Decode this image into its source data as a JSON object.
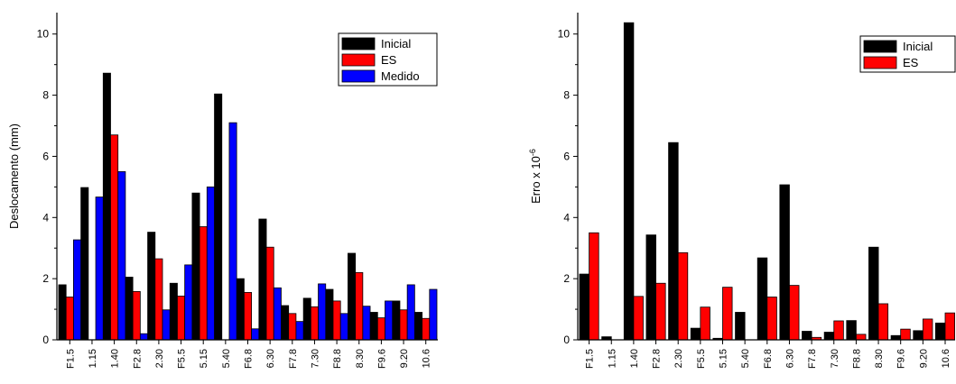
{
  "chart_data": [
    {
      "type": "bar",
      "ylabel": "Deslocamento (mm)",
      "ylim": [
        0,
        10.7
      ],
      "yticks": [
        0,
        2,
        4,
        6,
        8,
        10
      ],
      "legend_position": "top-right",
      "categories": [
        "F1.5",
        "F1.15",
        "F1.40",
        "F2.8",
        "F2.30",
        "F5.5",
        "F5.15",
        "F5.40",
        "F6.8",
        "F6.30",
        "F7.8",
        "F7.30",
        "F8.8",
        "F8.30",
        "F9.6",
        "F9.20",
        "F10.6"
      ],
      "tick_labels": [
        "F1.5",
        "1.15",
        "1.40",
        "F2.8",
        "2.30",
        "F5.5",
        "5.15",
        "5.40",
        "F6.8",
        "6.30",
        "F7.8",
        "7.30",
        "F8.8",
        "8.30",
        "F9.6",
        "9.20",
        "10.6"
      ],
      "series": [
        {
          "name": "Inicial",
          "color": "#000000",
          "values": [
            1.8,
            4.98,
            8.72,
            2.05,
            3.52,
            1.85,
            4.8,
            8.04,
            2.0,
            3.95,
            1.12,
            1.36,
            1.65,
            2.83,
            0.9,
            1.27,
            0.9
          ]
        },
        {
          "name": "ES",
          "color": "#ff0000",
          "values": [
            1.4,
            0.0,
            6.7,
            1.58,
            2.65,
            1.43,
            3.7,
            0.0,
            1.55,
            3.03,
            0.86,
            1.08,
            1.27,
            2.2,
            0.72,
            0.98,
            0.7
          ]
        },
        {
          "name": "Medido",
          "color": "#0000ff",
          "values": [
            3.27,
            4.67,
            5.5,
            0.2,
            0.98,
            2.45,
            5.0,
            7.1,
            0.36,
            1.7,
            0.6,
            1.83,
            0.86,
            1.1,
            1.27,
            1.8,
            1.65
          ]
        }
      ]
    },
    {
      "type": "bar",
      "ylabel": "Erro x 10",
      "ylabel_exponent": "-6",
      "ylim": [
        0,
        10.7
      ],
      "yticks": [
        0,
        2,
        4,
        6,
        8,
        10
      ],
      "legend_position": "top-right",
      "categories": [
        "F1.5",
        "F1.15",
        "F1.40",
        "F2.8",
        "F2.30",
        "F5.5",
        "F5.15",
        "F5.40",
        "F6.8",
        "F6.30",
        "F7.8",
        "F7.30",
        "F8.8",
        "F8.30",
        "F9.6",
        "F9.20",
        "F10.6"
      ],
      "tick_labels": [
        "F1.5",
        "1.15",
        "1.40",
        "F2.8",
        "2.30",
        "F5.5",
        "5.15",
        "5.40",
        "F6.8",
        "6.30",
        "F7.8",
        "7.30",
        "F8.8",
        "8.30",
        "F9.6",
        "9.20",
        "10.6"
      ],
      "series": [
        {
          "name": "Inicial",
          "color": "#000000",
          "values": [
            2.15,
            0.1,
            10.37,
            3.43,
            6.45,
            0.38,
            0.05,
            0.9,
            2.68,
            5.07,
            0.28,
            0.25,
            0.63,
            3.03,
            0.14,
            0.3,
            0.55
          ]
        },
        {
          "name": "ES",
          "color": "#ff0000",
          "values": [
            3.5,
            0.0,
            1.42,
            1.85,
            2.85,
            1.07,
            1.72,
            0.0,
            1.4,
            1.78,
            0.08,
            0.62,
            0.18,
            1.18,
            0.35,
            0.68,
            0.88
          ]
        }
      ]
    }
  ]
}
